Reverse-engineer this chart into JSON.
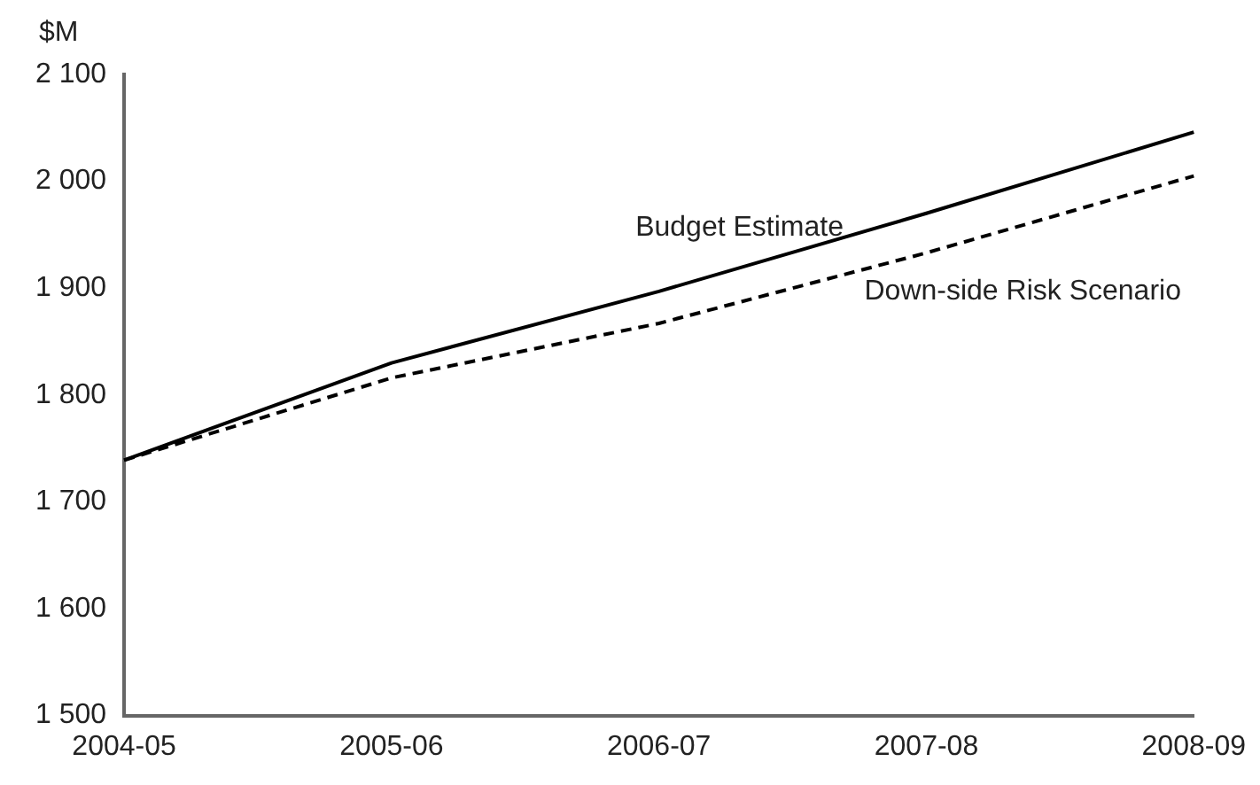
{
  "chart_data": {
    "type": "line",
    "ylabel": "$M",
    "categories": [
      "2004-05",
      "2005-06",
      "2006-07",
      "2007-08",
      "2008-09"
    ],
    "series": [
      {
        "name": "Budget Estimate",
        "color": "#000000",
        "line_style": "solid",
        "values": [
          1739,
          1830,
          1897,
          1970,
          2046
        ]
      },
      {
        "name": "Down-side Risk Scenario",
        "color": "#000000",
        "line_style": "dashed",
        "values": [
          1739,
          1816,
          1867,
          1933,
          2005
        ]
      }
    ],
    "ylim": [
      1500,
      2100
    ],
    "yticks": [
      {
        "value": 1500,
        "label": "1 500"
      },
      {
        "value": 1600,
        "label": "1 600"
      },
      {
        "value": 1700,
        "label": "1 700"
      },
      {
        "value": 1800,
        "label": "1 800"
      },
      {
        "value": 1900,
        "label": "1 900"
      },
      {
        "value": 2000,
        "label": "2 000"
      },
      {
        "value": 2100,
        "label": "2 100"
      }
    ],
    "grid": false,
    "legend": false,
    "marker": "none"
  }
}
